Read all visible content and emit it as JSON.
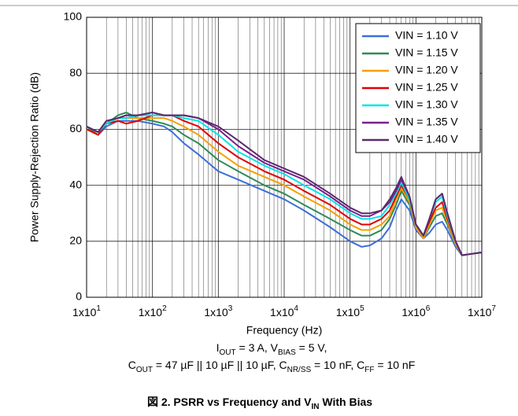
{
  "chart_data": {
    "type": "line",
    "title": [
      "図 2. PSRR vs Frequency and V",
      "IN",
      " With Bias"
    ],
    "xlabel": "Frequency (Hz)",
    "ylabel": "Power Supply-Rejection Ratio (dB)",
    "annotations": [
      [
        "I",
        "OUT",
        " = 3 A, V",
        "BIAS",
        " = 5 V,"
      ],
      [
        "C",
        "OUT",
        " = 47 µF || 10 µF || 10 µF, C",
        "NR/SS",
        " = 10 nF, C",
        "FF",
        " = 10 nF"
      ]
    ],
    "x": [
      10,
      15,
      20,
      30,
      40,
      60,
      100,
      150,
      200,
      300,
      500,
      1000,
      2000,
      5000,
      10000,
      20000,
      50000,
      100000,
      150000,
      200000,
      300000,
      400000,
      500000,
      600000,
      800000,
      1000000,
      1300000,
      1600000,
      2000000,
      2500000,
      3000000,
      4000000,
      5000000,
      7000000,
      10000000
    ],
    "xscale": "log",
    "xlim": [
      10,
      10000000
    ],
    "xticks": [
      {
        "value": 10,
        "label": [
          "1x10",
          "1"
        ]
      },
      {
        "value": 100,
        "label": [
          "1x10",
          "2"
        ]
      },
      {
        "value": 1000,
        "label": [
          "1x10",
          "3"
        ]
      },
      {
        "value": 10000,
        "label": [
          "1x10",
          "4"
        ]
      },
      {
        "value": 100000,
        "label": [
          "1x10",
          "5"
        ]
      },
      {
        "value": 1000000,
        "label": [
          "1x10",
          "6"
        ]
      },
      {
        "value": 10000000,
        "label": [
          "1x10",
          "7"
        ]
      }
    ],
    "ylim": [
      0,
      100
    ],
    "yticks": [
      0,
      20,
      40,
      60,
      80,
      100
    ],
    "grid": true,
    "minor_grid": true,
    "legend": "upper right",
    "series": [
      {
        "name": "VIN = 1.10 V",
        "color": "#3c6fd8",
        "values": [
          60,
          58,
          61,
          63,
          63,
          63,
          62,
          61,
          59,
          55,
          51,
          45,
          42,
          38,
          35,
          31,
          25,
          20,
          18,
          18.5,
          21,
          25,
          31,
          35,
          31,
          24,
          21,
          23,
          26,
          27,
          24,
          18,
          15,
          15.5,
          16
        ]
      },
      {
        "name": "VIN = 1.15 V",
        "color": "#2e8b57",
        "values": [
          61,
          58,
          62,
          65,
          66,
          64,
          63,
          62,
          61,
          58,
          55,
          49,
          45,
          40,
          37,
          33,
          28,
          24,
          22,
          22,
          24,
          28,
          33,
          38,
          33,
          25,
          21,
          25,
          29,
          30,
          26,
          19,
          15,
          15.5,
          16
        ]
      },
      {
        "name": "VIN = 1.20 V",
        "color": "#f5a000",
        "values": [
          60,
          58,
          62,
          64,
          64,
          64,
          64,
          64,
          63,
          61,
          58,
          52,
          47,
          43,
          40,
          36,
          31,
          26,
          24,
          24,
          26,
          29,
          35,
          39,
          34,
          25,
          21,
          26,
          31,
          32,
          27,
          19,
          15,
          15.5,
          16
        ]
      },
      {
        "name": "VIN = 1.25 V",
        "color": "#e00000",
        "values": [
          60,
          58,
          62,
          63,
          62,
          63,
          65,
          65,
          65,
          63,
          61,
          55,
          50,
          45,
          42,
          38,
          33,
          28,
          26,
          26,
          28,
          31,
          36,
          40,
          35,
          26,
          22,
          27,
          32,
          34,
          28,
          20,
          15,
          15.5,
          16
        ]
      },
      {
        "name": "VIN = 1.30 V",
        "color": "#00e5e5",
        "values": [
          61,
          59,
          62,
          64,
          64,
          65,
          65,
          65,
          65,
          64,
          63,
          58,
          52,
          47,
          44,
          40,
          35,
          30,
          28,
          28,
          29,
          33,
          37,
          41,
          35,
          26,
          22,
          28,
          34,
          36,
          29,
          20,
          15,
          15.5,
          16
        ]
      },
      {
        "name": "VIN = 1.35 V",
        "color": "#7a1f8c",
        "values": [
          61,
          59,
          63,
          64,
          65,
          65,
          66,
          65,
          65,
          65,
          64,
          60,
          54,
          48,
          45,
          42,
          36,
          31,
          29,
          29,
          31,
          34,
          38,
          42,
          36,
          26,
          22,
          28,
          35,
          37,
          30,
          20,
          15,
          15.5,
          16
        ]
      },
      {
        "name": "VIN = 1.40 V",
        "color": "#5b2a6e",
        "values": [
          61,
          59,
          63,
          64,
          65,
          65,
          66,
          65,
          65,
          65,
          64,
          61,
          56,
          49,
          46,
          43,
          37,
          32,
          30,
          30,
          31,
          35,
          39,
          43,
          36,
          26,
          22,
          28,
          35,
          37,
          30,
          20,
          15,
          15.5,
          16
        ]
      }
    ]
  }
}
